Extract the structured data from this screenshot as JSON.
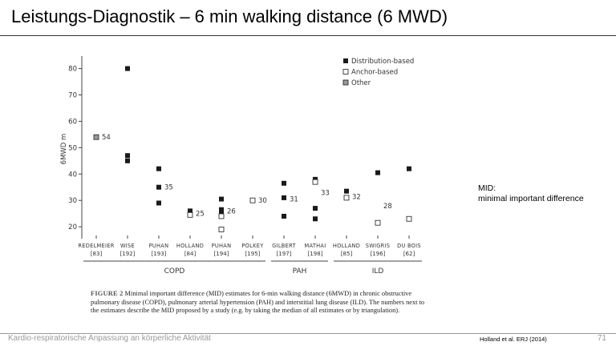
{
  "slide": {
    "title": "Leistungs-Diagnostik –  6 min walking distance (6 MWD)",
    "note_line1": "MID:",
    "note_line2": "minimal important difference",
    "footer_text": "Kardio-respiratorische Anpassung an körperliche Aktivität",
    "footer_reference": "Holland et al. ERJ (2014)",
    "page_number": "71"
  },
  "caption": {
    "label": "FIGURE 2",
    "text": "Minimal important difference (MID) estimates for 6-min walking distance (6MWD) in chronic obstructive pulmonary disease (COPD), pulmonary arterial hypertension (PAH) and interstitial lung disease (ILD). The numbers next to the estimates describe the MID proposed by a study (e.g. by taking the median of all estimates or by triangulation)."
  },
  "chart_data": {
    "type": "scatter",
    "ylabel": "6MWD m",
    "ylim": [
      17,
      82
    ],
    "yticks": [
      20,
      30,
      40,
      50,
      60,
      70,
      80
    ],
    "legend_position": "top-right",
    "legend": [
      {
        "label": "Distribution-based",
        "kind": "distribution"
      },
      {
        "label": "Anchor-based",
        "kind": "anchor"
      },
      {
        "label": "Other",
        "kind": "other"
      }
    ],
    "colors": {
      "distribution": "#1a1a1a",
      "anchor": "#ffffff",
      "other": "#9a9a9a",
      "axis": "#444444"
    },
    "studies": [
      {
        "name": "Redelmeier",
        "ref": "[83]",
        "group": "COPD",
        "points": [
          {
            "y": 54,
            "kind": "other"
          }
        ],
        "mid": "54",
        "mid_y": 54
      },
      {
        "name": "Wise",
        "ref": "[192]",
        "group": "COPD",
        "points": [
          {
            "y": 80,
            "kind": "distribution"
          },
          {
            "y": 47,
            "kind": "distribution"
          },
          {
            "y": 45,
            "kind": "distribution"
          }
        ],
        "mid": "",
        "mid_y": null
      },
      {
        "name": "Puhan",
        "ref": "[193]",
        "group": "COPD",
        "points": [
          {
            "y": 42,
            "kind": "distribution"
          },
          {
            "y": 35,
            "kind": "distribution"
          },
          {
            "y": 29,
            "kind": "distribution"
          }
        ],
        "mid": "35",
        "mid_y": 35
      },
      {
        "name": "Holland",
        "ref": "[84]",
        "group": "COPD",
        "points": [
          {
            "y": 26,
            "kind": "distribution"
          },
          {
            "y": 25,
            "kind": "distribution"
          },
          {
            "y": 24.5,
            "kind": "anchor"
          }
        ],
        "mid": "25",
        "mid_y": 25
      },
      {
        "name": "Puhan",
        "ref": "[194]",
        "group": "COPD",
        "points": [
          {
            "y": 30.5,
            "kind": "distribution"
          },
          {
            "y": 26.5,
            "kind": "distribution"
          },
          {
            "y": 25,
            "kind": "distribution"
          },
          {
            "y": 24,
            "kind": "anchor"
          },
          {
            "y": 19,
            "kind": "anchor"
          }
        ],
        "mid": "26",
        "mid_y": 26
      },
      {
        "name": "Polkey",
        "ref": "[195]",
        "group": "COPD",
        "points": [
          {
            "y": 30,
            "kind": "anchor"
          }
        ],
        "mid": "30",
        "mid_y": 30
      },
      {
        "name": "Gilbert",
        "ref": "[197]",
        "group": "PAH",
        "points": [
          {
            "y": 36.5,
            "kind": "distribution"
          },
          {
            "y": 31,
            "kind": "distribution"
          },
          {
            "y": 24,
            "kind": "distribution"
          }
        ],
        "mid": "31",
        "mid_y": 30.5
      },
      {
        "name": "Mathai",
        "ref": "[198]",
        "group": "PAH",
        "points": [
          {
            "y": 38,
            "kind": "distribution"
          },
          {
            "y": 37,
            "kind": "anchor"
          },
          {
            "y": 27,
            "kind": "distribution"
          },
          {
            "y": 23,
            "kind": "distribution"
          }
        ],
        "mid": "33",
        "mid_y": 33
      },
      {
        "name": "Holland",
        "ref": "[85]",
        "group": "ILD",
        "points": [
          {
            "y": 33.5,
            "kind": "distribution"
          },
          {
            "y": 31,
            "kind": "anchor"
          }
        ],
        "mid": "32",
        "mid_y": 31.5
      },
      {
        "name": "Swigris",
        "ref": "[196]",
        "group": "ILD",
        "points": [
          {
            "y": 40.5,
            "kind": "distribution"
          },
          {
            "y": 21.5,
            "kind": "anchor"
          }
        ],
        "mid": "28",
        "mid_y": 28
      },
      {
        "name": "du Bois",
        "ref": "[62]",
        "group": "ILD",
        "points": [
          {
            "y": 42,
            "kind": "distribution"
          },
          {
            "y": 23,
            "kind": "anchor"
          }
        ],
        "mid": "",
        "mid_y": null
      }
    ],
    "groups": [
      {
        "label": "COPD",
        "from": 0,
        "to": 5
      },
      {
        "label": "PAH",
        "from": 6,
        "to": 7
      },
      {
        "label": "ILD",
        "from": 8,
        "to": 10
      }
    ]
  }
}
